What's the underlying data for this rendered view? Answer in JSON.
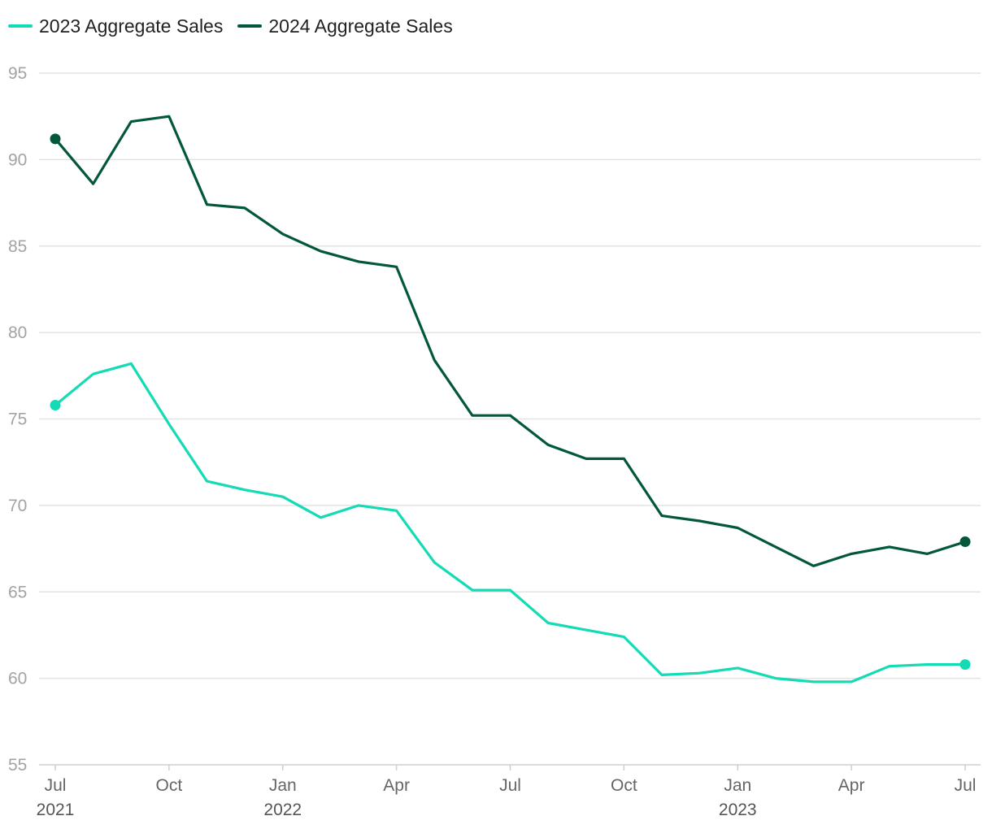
{
  "chart_data": {
    "type": "line",
    "title": "",
    "xlabel": "",
    "ylabel": "",
    "ylim": [
      55,
      95
    ],
    "yticks": [
      55,
      60,
      65,
      70,
      75,
      80,
      85,
      90,
      95
    ],
    "x": [
      "2021-07",
      "2021-08",
      "2021-09",
      "2021-10",
      "2021-11",
      "2021-12",
      "2022-01",
      "2022-02",
      "2022-03",
      "2022-04",
      "2022-05",
      "2022-06",
      "2022-07",
      "2022-08",
      "2022-09",
      "2022-10",
      "2022-11",
      "2022-12",
      "2023-01",
      "2023-02",
      "2023-03",
      "2023-04",
      "2023-05",
      "2023-06",
      "2023-07"
    ],
    "xticks": [
      {
        "index": 0,
        "label": "Jul",
        "year": "2021"
      },
      {
        "index": 3,
        "label": "Oct",
        "year": ""
      },
      {
        "index": 6,
        "label": "Jan",
        "year": "2022"
      },
      {
        "index": 9,
        "label": "Apr",
        "year": ""
      },
      {
        "index": 12,
        "label": "Jul",
        "year": ""
      },
      {
        "index": 15,
        "label": "Oct",
        "year": ""
      },
      {
        "index": 18,
        "label": "Jan",
        "year": "2023"
      },
      {
        "index": 21,
        "label": "Apr",
        "year": ""
      },
      {
        "index": 24,
        "label": "Jul",
        "year": ""
      }
    ],
    "legend_position": "top-left",
    "grid": true,
    "series": [
      {
        "name": "2023 Aggregate Sales",
        "color": "#13dbb5",
        "values": [
          75.8,
          77.6,
          78.2,
          74.7,
          71.4,
          70.9,
          70.5,
          69.3,
          70.0,
          69.7,
          66.7,
          65.1,
          65.1,
          63.2,
          62.8,
          62.4,
          60.2,
          60.3,
          60.6,
          60.0,
          59.8,
          59.8,
          60.7,
          60.8,
          60.8
        ]
      },
      {
        "name": "2024 Aggregate Sales",
        "color": "#03573b",
        "values": [
          91.2,
          88.6,
          92.2,
          92.5,
          87.4,
          87.2,
          85.7,
          84.7,
          84.1,
          83.8,
          78.4,
          75.2,
          75.2,
          73.5,
          72.7,
          72.7,
          69.4,
          69.1,
          68.7,
          67.6,
          66.5,
          67.2,
          67.6,
          67.2,
          67.9
        ]
      }
    ]
  }
}
